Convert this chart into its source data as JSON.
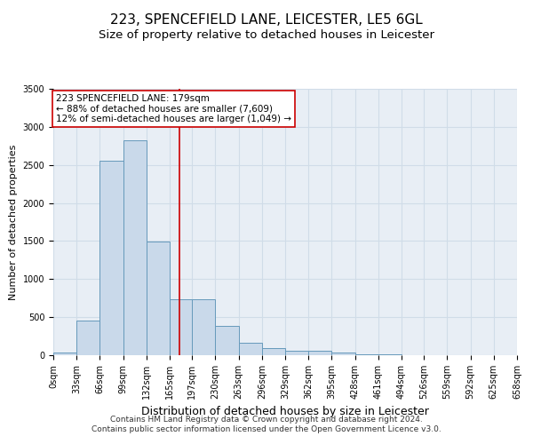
{
  "title": "223, SPENCEFIELD LANE, LEICESTER, LE5 6GL",
  "subtitle": "Size of property relative to detached houses in Leicester",
  "xlabel": "Distribution of detached houses by size in Leicester",
  "ylabel": "Number of detached properties",
  "footer_line1": "Contains HM Land Registry data © Crown copyright and database right 2024.",
  "footer_line2": "Contains public sector information licensed under the Open Government Licence v3.0.",
  "annotation_line1": "223 SPENCEFIELD LANE: 179sqm",
  "annotation_line2": "← 88% of detached houses are smaller (7,609)",
  "annotation_line3": "12% of semi-detached houses are larger (1,049) →",
  "bar_values": [
    30,
    450,
    2550,
    2820,
    1490,
    730,
    730,
    390,
    160,
    90,
    55,
    55,
    30,
    15,
    10,
    5,
    5,
    5,
    5,
    2
  ],
  "bin_edges": [
    0,
    33,
    66,
    99,
    132,
    165,
    197,
    230,
    263,
    296,
    329,
    362,
    395,
    428,
    461,
    494,
    526,
    559,
    592,
    625,
    658
  ],
  "bin_labels": [
    "0sqm",
    "33sqm",
    "66sqm",
    "99sqm",
    "132sqm",
    "165sqm",
    "197sqm",
    "230sqm",
    "263sqm",
    "296sqm",
    "329sqm",
    "362sqm",
    "395sqm",
    "428sqm",
    "461sqm",
    "494sqm",
    "526sqm",
    "559sqm",
    "592sqm",
    "625sqm",
    "658sqm"
  ],
  "bar_color": "#c9d9ea",
  "bar_edge_color": "#6699bb",
  "property_line_x": 179,
  "property_line_color": "#cc0000",
  "ylim": [
    0,
    3500
  ],
  "yticks": [
    0,
    500,
    1000,
    1500,
    2000,
    2500,
    3000,
    3500
  ],
  "grid_color": "#d0dce8",
  "background_color": "#e8eef5",
  "title_fontsize": 11,
  "subtitle_fontsize": 9.5,
  "xlabel_fontsize": 9,
  "ylabel_fontsize": 8,
  "tick_fontsize": 7,
  "annotation_fontsize": 7.5,
  "footer_fontsize": 6.5
}
